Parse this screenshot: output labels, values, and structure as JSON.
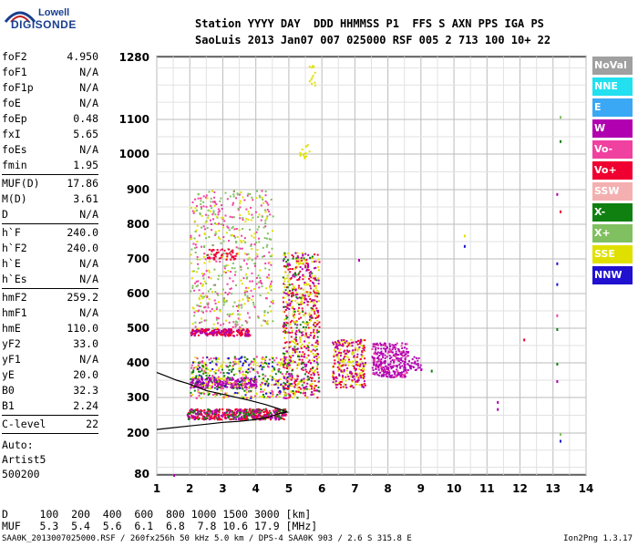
{
  "logo": {
    "top": "Lowell",
    "main": "DIGISONDE"
  },
  "header": {
    "line1": "Station YYYY DAY  DDD HHMMSS P1  FFS S AXN PPS IGA PS",
    "line2": "SaoLuis 2013 Jan07 007 025000 RSF 005 2 713 100 10+ 22"
  },
  "params": [
    {
      "label": "foF2",
      "value": "4.950"
    },
    {
      "label": "foF1",
      "value": "N/A"
    },
    {
      "label": "foF1p",
      "value": "N/A"
    },
    {
      "label": "foE",
      "value": "N/A"
    },
    {
      "label": "foEp",
      "value": "0.48"
    },
    {
      "label": "fxI",
      "value": "5.65"
    },
    {
      "label": "foEs",
      "value": "N/A"
    },
    {
      "label": "fmin",
      "value": "1.95"
    },
    {
      "sep": true
    },
    {
      "label": "MUF(D)",
      "value": "17.86"
    },
    {
      "label": "M(D)",
      "value": "3.61"
    },
    {
      "label": "D",
      "value": "N/A"
    },
    {
      "sep": true
    },
    {
      "label": "h`F",
      "value": "240.0"
    },
    {
      "label": "h`F2",
      "value": "240.0"
    },
    {
      "label": "h`E",
      "value": "N/A"
    },
    {
      "label": "h`Es",
      "value": "N/A"
    },
    {
      "sep": true
    },
    {
      "label": "hmF2",
      "value": "259.2"
    },
    {
      "label": "hmF1",
      "value": "N/A"
    },
    {
      "label": "hmE",
      "value": "110.0"
    },
    {
      "label": "yF2",
      "value": "33.0"
    },
    {
      "label": "yF1",
      "value": "N/A"
    },
    {
      "label": "yE",
      "value": "20.0"
    },
    {
      "label": "B0",
      "value": "32.3"
    },
    {
      "label": "B1",
      "value": "2.24"
    },
    {
      "sep": true
    },
    {
      "label": "C-level",
      "value": "22"
    },
    {
      "sep": true
    }
  ],
  "auto": {
    "line1": "Auto:",
    "line2": "Artist5",
    "line3": "500200"
  },
  "legend": [
    {
      "label": "NoVal",
      "color": "#a0a0a0"
    },
    {
      "label": "NNE",
      "color": "#22e0f0"
    },
    {
      "label": "E",
      "color": "#3aa8f5"
    },
    {
      "label": "W",
      "color": "#b000b0"
    },
    {
      "label": "Vo-",
      "color": "#f040a0"
    },
    {
      "label": "Vo+",
      "color": "#f00030"
    },
    {
      "label": "SSW",
      "color": "#f4b0b0"
    },
    {
      "label": "X-",
      "color": "#108010"
    },
    {
      "label": "X+",
      "color": "#80c060"
    },
    {
      "label": "SSE",
      "color": "#e0e000"
    },
    {
      "label": "NNW",
      "color": "#2010d0"
    }
  ],
  "bottom": {
    "line1": "D     100  200  400  600  800 1000 1500 3000 [km]",
    "line2": "MUF   5.3  5.4  5.6  6.1  6.8  7.8 10.6 17.9 [MHz]"
  },
  "footer": {
    "left": "SAA0K_2013007025000.RSF / 260fx256h 50 kHz 5.0 km / DPS-4 SAA0K 903 / 2.6 S 315.8 E",
    "right": "Ion2Png 1.3.17"
  },
  "chart_data": {
    "type": "scatter",
    "xlim": [
      1,
      14
    ],
    "ylim": [
      80,
      1280
    ],
    "y_scale": "nonlinear (ionogram height scale)",
    "xticks": [
      1,
      2,
      3,
      4,
      5,
      6,
      7,
      8,
      9,
      10,
      11,
      12,
      13,
      14
    ],
    "yticks": [
      80,
      200,
      300,
      400,
      500,
      600,
      700,
      800,
      900,
      1000,
      1100,
      1280
    ],
    "grid": true,
    "regions": [
      {
        "fmin": 1.9,
        "fmax": 4.9,
        "hmin": 240,
        "hmax": 270,
        "color": "#f00030",
        "n": 300
      },
      {
        "fmin": 1.9,
        "fmax": 4.9,
        "hmin": 240,
        "hmax": 270,
        "color": "#b000b0",
        "n": 120
      },
      {
        "fmin": 1.9,
        "fmax": 4.9,
        "hmin": 240,
        "hmax": 270,
        "color": "#108010",
        "n": 80
      },
      {
        "fmin": 2.0,
        "fmax": 4.0,
        "hmin": 330,
        "hmax": 360,
        "color": "#b000b0",
        "n": 260
      },
      {
        "fmin": 2.0,
        "fmax": 5.0,
        "hmin": 300,
        "hmax": 420,
        "color": "#e0e000",
        "n": 180
      },
      {
        "fmin": 2.0,
        "fmax": 5.0,
        "hmin": 300,
        "hmax": 420,
        "color": "#108010",
        "n": 120
      },
      {
        "fmin": 2.0,
        "fmax": 5.0,
        "hmin": 300,
        "hmax": 420,
        "color": "#f040a0",
        "n": 120
      },
      {
        "fmin": 2.0,
        "fmax": 5.0,
        "hmin": 300,
        "hmax": 420,
        "color": "#2010d0",
        "n": 60
      },
      {
        "fmin": 2.0,
        "fmax": 3.8,
        "hmin": 480,
        "hmax": 500,
        "color": "#f00030",
        "n": 160
      },
      {
        "fmin": 2.0,
        "fmax": 3.8,
        "hmin": 480,
        "hmax": 500,
        "color": "#b000b0",
        "n": 60
      },
      {
        "fmin": 2.0,
        "fmax": 4.5,
        "hmin": 500,
        "hmax": 900,
        "color": "#f040a0",
        "n": 220
      },
      {
        "fmin": 2.0,
        "fmax": 4.5,
        "hmin": 500,
        "hmax": 900,
        "color": "#80c060",
        "n": 200
      },
      {
        "fmin": 2.0,
        "fmax": 4.5,
        "hmin": 500,
        "hmax": 900,
        "color": "#e0e000",
        "n": 140
      },
      {
        "fmin": 2.5,
        "fmax": 3.4,
        "hmin": 700,
        "hmax": 730,
        "color": "#f00030",
        "n": 50
      },
      {
        "fmin": 4.8,
        "fmax": 5.9,
        "hmin": 300,
        "hmax": 720,
        "color": "#f00030",
        "n": 260
      },
      {
        "fmin": 4.8,
        "fmax": 5.9,
        "hmin": 300,
        "hmax": 720,
        "color": "#e0e000",
        "n": 220
      },
      {
        "fmin": 4.8,
        "fmax": 5.9,
        "hmin": 300,
        "hmax": 720,
        "color": "#b000b0",
        "n": 160
      },
      {
        "fmin": 4.8,
        "fmax": 5.9,
        "hmin": 300,
        "hmax": 720,
        "color": "#108010",
        "n": 80
      },
      {
        "fmin": 6.3,
        "fmax": 7.3,
        "hmin": 330,
        "hmax": 470,
        "color": "#e0e000",
        "n": 120
      },
      {
        "fmin": 6.3,
        "fmax": 7.3,
        "hmin": 330,
        "hmax": 470,
        "color": "#f00030",
        "n": 90
      },
      {
        "fmin": 6.3,
        "fmax": 7.3,
        "hmin": 330,
        "hmax": 470,
        "color": "#b000b0",
        "n": 80
      },
      {
        "fmin": 7.5,
        "fmax": 8.6,
        "hmin": 360,
        "hmax": 460,
        "color": "#b000b0",
        "n": 260
      },
      {
        "fmin": 7.5,
        "fmax": 8.6,
        "hmin": 360,
        "hmax": 460,
        "color": "#f040a0",
        "n": 40
      },
      {
        "fmin": 8.6,
        "fmax": 9.0,
        "hmin": 380,
        "hmax": 420,
        "color": "#b000b0",
        "n": 30
      },
      {
        "fmin": 5.6,
        "fmax": 5.8,
        "hmin": 1200,
        "hmax": 1270,
        "color": "#e0e000",
        "n": 12
      },
      {
        "fmin": 5.3,
        "fmax": 5.6,
        "hmin": 990,
        "hmax": 1030,
        "color": "#e0e000",
        "n": 14
      }
    ],
    "points": [
      {
        "f": 10.3,
        "h": 740,
        "color": "#2010d0"
      },
      {
        "f": 10.3,
        "h": 770,
        "color": "#e0e000"
      },
      {
        "f": 11.3,
        "h": 290,
        "color": "#b000b0"
      },
      {
        "f": 11.3,
        "h": 270,
        "color": "#b000b0"
      },
      {
        "f": 12.1,
        "h": 470,
        "color": "#f00030"
      },
      {
        "f": 13.2,
        "h": 1110,
        "color": "#80c060"
      },
      {
        "f": 13.2,
        "h": 1040,
        "color": "#108010"
      },
      {
        "f": 13.1,
        "h": 890,
        "color": "#b000b0"
      },
      {
        "f": 13.2,
        "h": 840,
        "color": "#f00030"
      },
      {
        "f": 13.1,
        "h": 690,
        "color": "#2010d0"
      },
      {
        "f": 13.1,
        "h": 630,
        "color": "#2010d0"
      },
      {
        "f": 13.1,
        "h": 540,
        "color": "#f040a0"
      },
      {
        "f": 13.1,
        "h": 500,
        "color": "#108010"
      },
      {
        "f": 13.1,
        "h": 400,
        "color": "#108010"
      },
      {
        "f": 13.1,
        "h": 350,
        "color": "#b000b0"
      },
      {
        "f": 13.2,
        "h": 200,
        "color": "#80c060"
      },
      {
        "f": 13.2,
        "h": 180,
        "color": "#2010d0"
      },
      {
        "f": 9.3,
        "h": 380,
        "color": "#108010"
      },
      {
        "f": 7.1,
        "h": 700,
        "color": "#b000b0"
      },
      {
        "f": 1.5,
        "h": 80,
        "color": "#b000b0"
      }
    ],
    "profile": [
      [
        1.0,
        210
      ],
      [
        1.5,
        215
      ],
      [
        2.0,
        220
      ],
      [
        2.5,
        225
      ],
      [
        3.0,
        230
      ],
      [
        3.5,
        233
      ],
      [
        4.0,
        238
      ],
      [
        4.4,
        245
      ],
      [
        4.7,
        255
      ],
      [
        4.95,
        259
      ],
      [
        4.7,
        268
      ],
      [
        4.3,
        280
      ],
      [
        3.8,
        292
      ],
      [
        3.2,
        305
      ],
      [
        2.5,
        320
      ],
      [
        1.95,
        340
      ],
      [
        1.6,
        350
      ],
      [
        1.2,
        365
      ],
      [
        1.0,
        372
      ]
    ]
  }
}
